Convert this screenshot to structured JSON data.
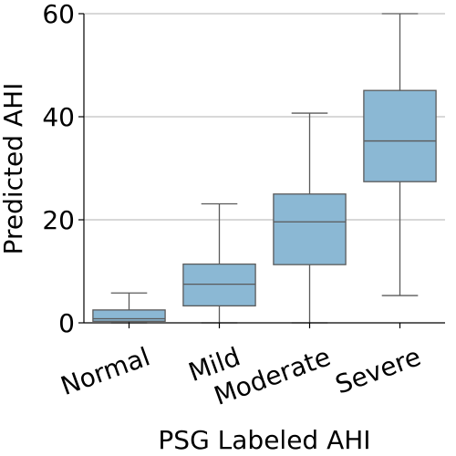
{
  "chart_data": {
    "type": "box",
    "title": "",
    "xlabel": "PSG Labeled AHI",
    "ylabel": "Predicted AHI",
    "ylim": [
      0,
      60
    ],
    "yticks": [
      0,
      20,
      40,
      60
    ],
    "grid": "y",
    "box_color": "#8bb8d4",
    "line_color": "#5a5a5a",
    "categories": [
      "Normal",
      "Mild",
      "Moderate",
      "Severe"
    ],
    "boxes": [
      {
        "category": "Normal",
        "whisker_low": 0,
        "q1": 0.3,
        "median": 0.8,
        "q3": 2.5,
        "whisker_high": 5.8
      },
      {
        "category": "Mild",
        "whisker_low": 0,
        "q1": 3.3,
        "median": 7.5,
        "q3": 11.4,
        "whisker_high": 23.1
      },
      {
        "category": "Moderate",
        "whisker_low": 0,
        "q1": 11.3,
        "median": 19.6,
        "q3": 25.0,
        "whisker_high": 40.7
      },
      {
        "category": "Severe",
        "whisker_low": 5.3,
        "q1": 27.4,
        "median": 35.3,
        "q3": 45.1,
        "whisker_high": 60.0
      }
    ]
  }
}
